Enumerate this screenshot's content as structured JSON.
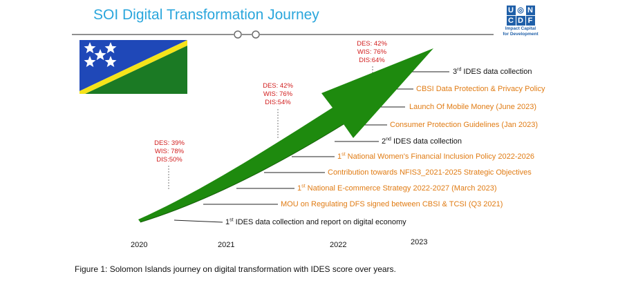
{
  "title": "SOI Digital Transformation Journey",
  "logo": {
    "letters_top": [
      "U",
      "N"
    ],
    "letters_bottom": [
      "C",
      "D",
      "F"
    ],
    "tagline_1": "Impact Capital",
    "tagline_2": "for Development"
  },
  "scores": [
    {
      "des": "DES: 39%",
      "wis": "WIS: 78%",
      "dis": "DIS:50%"
    },
    {
      "des": "DES: 42%",
      "wis": "WIS: 76%",
      "dis": "DIS:54%"
    },
    {
      "des": "DES: 42%",
      "wis": "WIS: 76%",
      "dis": "DIS:64%"
    }
  ],
  "annotations": [
    {
      "pre": "3",
      "sup": "rd",
      "text": "  IDES data collection",
      "color": "black"
    },
    {
      "pre": "",
      "sup": "",
      "text": "CBSI Data Protection & Privacy Policy",
      "color": "orange"
    },
    {
      "pre": "",
      "sup": "",
      "text": "Launch Of Mobile Money (June 2023)",
      "color": "orange"
    },
    {
      "pre": "",
      "sup": "",
      "text": "Consumer Protection Guidelines (Jan 2023)",
      "color": "orange"
    },
    {
      "pre": "2",
      "sup": "nd",
      "text": " IDES data collection",
      "color": "black"
    },
    {
      "pre": "1",
      "sup": "st",
      "text": " National Women's Financial Inclusion Policy 2022-2026",
      "color": "orange"
    },
    {
      "pre": "",
      "sup": "",
      "text": "Contribution towards NFIS3_2021-2025 Strategic Objectives",
      "color": "orange"
    },
    {
      "pre": "1",
      "sup": "st",
      "text": " National E-commerce Strategy 2022-2027 (March 2023)",
      "color": "orange"
    },
    {
      "pre": "",
      "sup": "",
      "text": "MOU on Regulating DFS signed between CBSI & TCSI (Q3 2021)",
      "color": "orange"
    },
    {
      "pre": "1",
      "sup": "st",
      "text": " IDES data collection and report on digital economy",
      "color": "black"
    }
  ],
  "years": [
    "2020",
    "2021",
    "2022",
    "2023"
  ],
  "caption": "Figure 1: Solomon Islands journey on digital transformation with IDES score over years.",
  "colors": {
    "title": "#2aa6dc",
    "arrow": "#1e8a0e",
    "flag_blue": "#1f48b8",
    "flag_green": "#1b7a24",
    "flag_yellow": "#f5e31a",
    "orange_text": "#e07b13",
    "score_red": "#d11c1c",
    "un_blue": "#1f5fa8"
  }
}
